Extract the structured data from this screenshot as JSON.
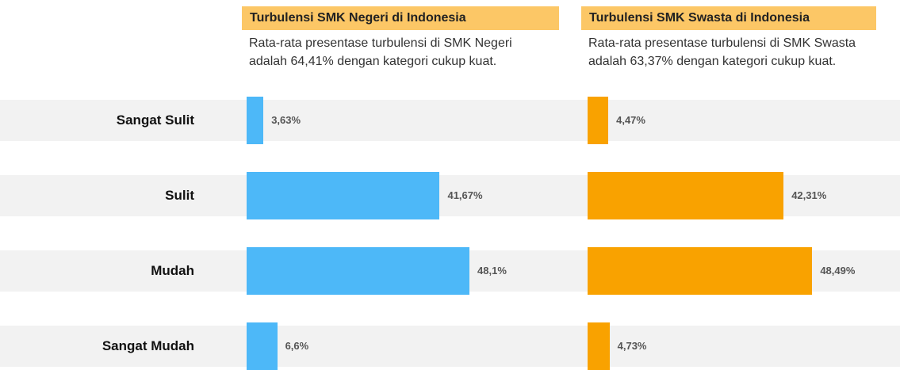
{
  "chart_data": {
    "type": "bar",
    "categories": [
      "Sangat Sulit",
      "Sulit",
      "Mudah",
      "Sangat Mudah"
    ],
    "xlim": [
      0,
      70
    ],
    "series": [
      {
        "name": "Turbulensi SMK Negeri di Indonesia",
        "description": "Rata-rata presentase turbulensi di SMK Negeri adalah 64,41% dengan kategori cukup kuat.",
        "color": "#4db8f8",
        "values": [
          3.63,
          41.67,
          48.1,
          6.6
        ],
        "value_labels": [
          "3,63%",
          "41,67%",
          "48,1%",
          "6,6%"
        ]
      },
      {
        "name": "Turbulensi SMK Swasta di Indonesia",
        "description": "Rata-rata presentase turbulensi di SMK Swasta adalah 63,37% dengan kategori cukup kuat.",
        "color": "#f9a200",
        "values": [
          4.47,
          42.31,
          48.49,
          4.73
        ],
        "value_labels": [
          "4,47%",
          "42,31%",
          "48,49%",
          "4,73%"
        ]
      }
    ]
  }
}
